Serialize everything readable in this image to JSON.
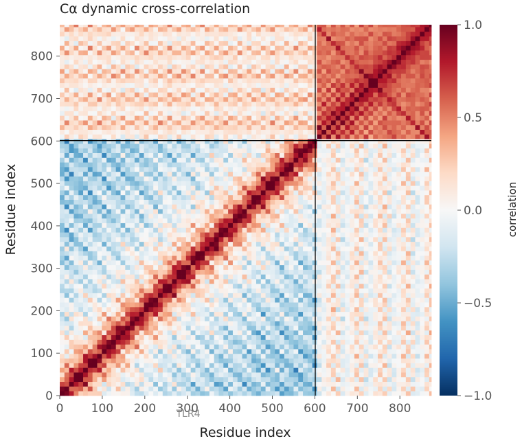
{
  "chart_data": {
    "type": "heatmap",
    "title": "Cα dynamic cross-correlation",
    "xlabel": "Residue index",
    "ylabel": "Residue index",
    "colorbar_label": "correlation",
    "n_residues": 874,
    "xlim": [
      0,
      874
    ],
    "ylim": [
      0,
      874
    ],
    "x_ticks": [
      0,
      100,
      200,
      300,
      400,
      500,
      600,
      700,
      800
    ],
    "y_ticks": [
      0,
      100,
      200,
      300,
      400,
      500,
      600,
      700,
      800
    ],
    "colorbar_range": [
      -1.0,
      1.0
    ],
    "colorbar_ticks": [
      {
        "value": 1.0,
        "label": "1.0"
      },
      {
        "value": 0.5,
        "label": "0.5"
      },
      {
        "value": 0.0,
        "label": "0.0"
      },
      {
        "value": -0.5,
        "label": "−0.5"
      },
      {
        "value": -1.0,
        "label": "−1.0"
      }
    ],
    "colormap": [
      "#053061",
      "#2166ac",
      "#4393c3",
      "#92c5de",
      "#d1e5f0",
      "#f7f7f7",
      "#fddbc7",
      "#f4a582",
      "#d6604d",
      "#b2182b",
      "#67001f"
    ],
    "domain_boundary": 601,
    "domains": [
      {
        "label": "TLR4",
        "start": 0,
        "end": 601
      },
      {
        "label": "",
        "start": 601,
        "end": 874
      }
    ],
    "block_correlation": [
      {
        "rows": "0-601",
        "cols": "0-601",
        "diagonal": 1.0,
        "near_diagonal": 0.7,
        "far_off_diagonal": -0.5
      },
      {
        "rows": "601-874",
        "cols": "601-874",
        "diagonal": 1.0,
        "mean": 0.55
      },
      {
        "rows": "0-601",
        "cols": "601-874",
        "mean": 0.15
      },
      {
        "rows": "601-874",
        "cols": "0-601",
        "mean": 0.05
      }
    ]
  },
  "colors": {
    "boundary_line": "#000000",
    "axis_text": "#555555",
    "title_text": "#222222"
  }
}
